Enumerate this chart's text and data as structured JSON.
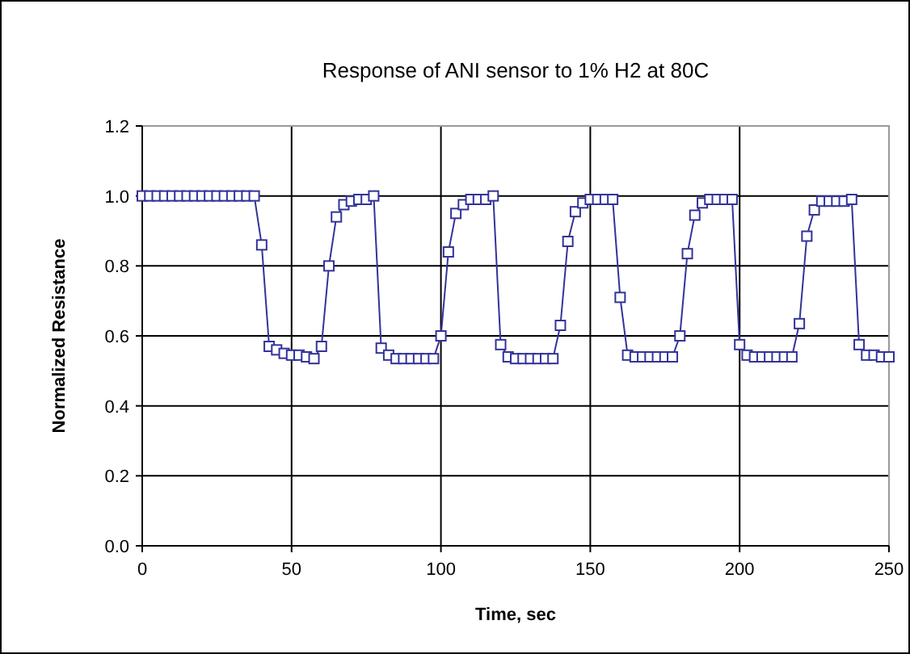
{
  "chart_data": {
    "type": "line",
    "title": "Response of ANI sensor to 1% H2 at 80C",
    "xlabel": "Time, sec",
    "ylabel": "Normalized Resistance",
    "x": [
      0,
      2.5,
      5,
      7.5,
      10,
      12.5,
      15,
      17.5,
      20,
      22.5,
      25,
      27.5,
      30,
      32.5,
      35,
      37.5,
      40,
      42.5,
      45,
      47.5,
      50,
      52.5,
      55,
      57.5,
      60,
      62.5,
      65,
      67.5,
      70,
      72.5,
      75,
      77.5,
      80,
      82.5,
      85,
      87.5,
      90,
      92.5,
      95,
      97.5,
      100,
      102.5,
      105,
      107.5,
      110,
      112.5,
      115,
      117.5,
      120,
      122.5,
      125,
      127.5,
      130,
      132.5,
      135,
      137.5,
      140,
      142.5,
      145,
      147.5,
      150,
      152.5,
      155,
      157.5,
      160,
      162.5,
      165,
      167.5,
      170,
      172.5,
      175,
      177.5,
      180,
      182.5,
      185,
      187.5,
      190,
      192.5,
      195,
      197.5,
      200,
      202.5,
      205,
      207.5,
      210,
      212.5,
      215,
      217.5,
      220,
      222.5,
      225,
      227.5,
      230,
      232.5,
      235,
      237.5,
      240,
      242.5,
      245,
      247.5,
      250
    ],
    "series": [
      {
        "color": "#333399",
        "values": [
          1,
          1,
          1,
          1,
          1,
          1,
          1,
          1,
          1,
          1,
          1,
          1,
          1,
          1,
          1,
          1,
          0.86,
          0.57,
          0.56,
          0.55,
          0.545,
          0.545,
          0.54,
          0.535,
          0.57,
          0.8,
          0.94,
          0.975,
          0.985,
          0.99,
          0.99,
          1,
          0.565,
          0.545,
          0.535,
          0.535,
          0.535,
          0.535,
          0.535,
          0.535,
          0.6,
          0.84,
          0.95,
          0.975,
          0.99,
          0.99,
          0.99,
          1,
          0.575,
          0.54,
          0.535,
          0.535,
          0.535,
          0.535,
          0.535,
          0.535,
          0.63,
          0.87,
          0.955,
          0.98,
          0.99,
          0.99,
          0.99,
          0.99,
          0.71,
          0.545,
          0.54,
          0.54,
          0.54,
          0.54,
          0.54,
          0.54,
          0.6,
          0.835,
          0.945,
          0.98,
          0.99,
          0.99,
          0.99,
          0.99,
          0.575,
          0.545,
          0.54,
          0.54,
          0.54,
          0.54,
          0.54,
          0.54,
          0.635,
          0.885,
          0.96,
          0.985,
          0.985,
          0.985,
          0.985,
          0.99,
          0.575,
          0.545,
          0.545,
          0.54,
          0.54
        ]
      }
    ],
    "xlim": [
      0,
      250
    ],
    "xticks": [
      0,
      50,
      100,
      150,
      200,
      250
    ],
    "ylim": [
      0,
      1.2
    ],
    "yticks": [
      {
        "value": 0,
        "label": "0.0"
      },
      {
        "value": 0.2,
        "label": "0.2"
      },
      {
        "value": 0.4,
        "label": "0.4"
      },
      {
        "value": 0.6,
        "label": "0.6"
      },
      {
        "value": 0.8,
        "label": "0.8"
      },
      {
        "value": 1,
        "label": "1.0"
      },
      {
        "value": 1.2,
        "label": "1.2"
      }
    ],
    "grid": true,
    "marker": "square",
    "line_style": "solid"
  }
}
